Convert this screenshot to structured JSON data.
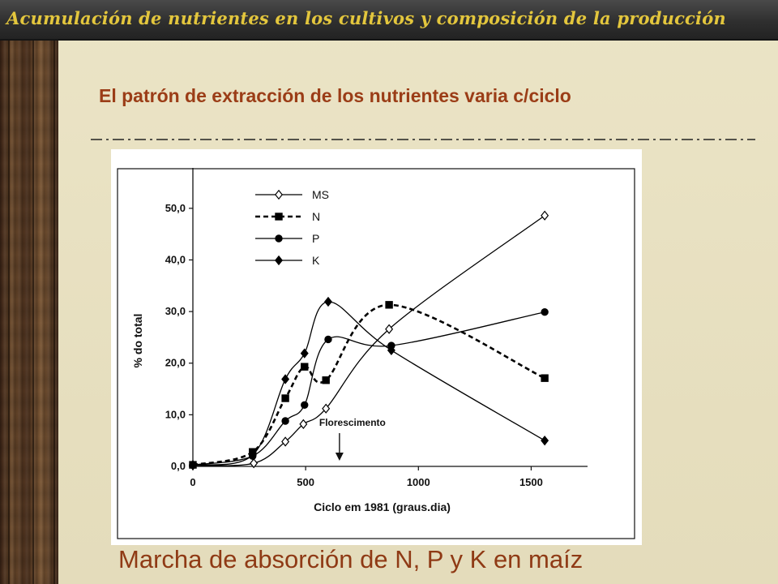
{
  "header": {
    "title": "Acumulación de nutrientes en los cultivos y  composición de la producción"
  },
  "slide": {
    "subtitle": "El patrón de extracción de los nutrientes varia c/ciclo",
    "caption": "Marcha de absorción de N, P y K en maíz"
  },
  "colors": {
    "title_text": "#e3c63d",
    "subtitle_text": "#9b3d17",
    "caption_text": "#8f3a15",
    "series": "#000000"
  },
  "chart_data": {
    "type": "line",
    "title": "",
    "xlabel": "Ciclo em 1981 (graus.dia)",
    "ylabel": "% do total",
    "xlim": [
      0,
      1750
    ],
    "ylim": [
      0,
      55
    ],
    "x_ticks": [
      "0",
      "500",
      "1000",
      "1500"
    ],
    "y_ticks": [
      "0,0",
      "10,0",
      "20,0",
      "30,0",
      "40,0",
      "50,0"
    ],
    "grid": false,
    "legend_position": "top-left",
    "annotation": {
      "text": "Florescimento",
      "x": 650
    },
    "series": [
      {
        "name": "MS",
        "marker": "diamond-open",
        "line": "solid",
        "points": [
          [
            0,
            0.2
          ],
          [
            270,
            0.6
          ],
          [
            410,
            4.8
          ],
          [
            490,
            8.2
          ],
          [
            590,
            11.2
          ],
          [
            870,
            26.6
          ],
          [
            1560,
            48.6
          ]
        ]
      },
      {
        "name": "N",
        "marker": "square-filled",
        "line": "dashed",
        "points": [
          [
            0,
            0.3
          ],
          [
            265,
            2.8
          ],
          [
            410,
            13.2
          ],
          [
            495,
            19.3
          ],
          [
            590,
            16.7
          ],
          [
            870,
            31.3
          ],
          [
            1560,
            17.1
          ]
        ]
      },
      {
        "name": "P",
        "marker": "circle-filled",
        "line": "solid",
        "points": [
          [
            0,
            0.3
          ],
          [
            265,
            2.0
          ],
          [
            410,
            8.8
          ],
          [
            495,
            11.9
          ],
          [
            600,
            24.6
          ],
          [
            880,
            23.4
          ],
          [
            1560,
            29.9
          ]
        ]
      },
      {
        "name": "K",
        "marker": "diamond-filled",
        "line": "solid",
        "points": [
          [
            0,
            0.3
          ],
          [
            265,
            2.2
          ],
          [
            410,
            16.9
          ],
          [
            495,
            21.9
          ],
          [
            600,
            31.9
          ],
          [
            880,
            22.5
          ],
          [
            1560,
            5.0
          ]
        ]
      }
    ]
  }
}
